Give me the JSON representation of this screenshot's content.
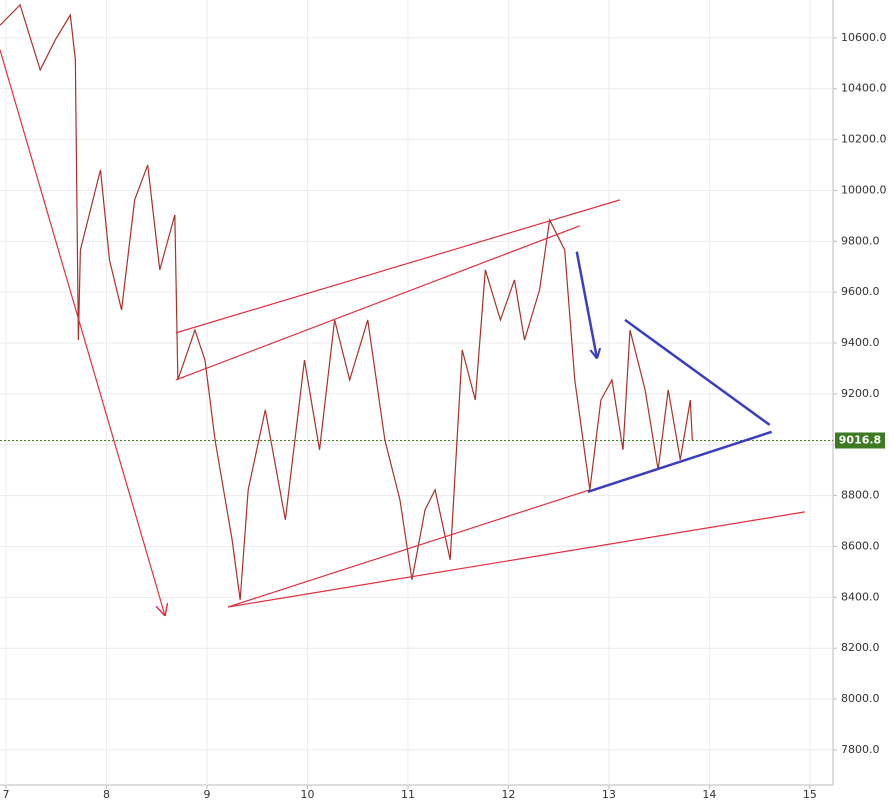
{
  "chart_data": {
    "type": "line",
    "x": [
      6.94,
      7.14,
      7.34,
      7.49,
      7.64,
      7.69,
      7.72,
      7.74,
      7.94,
      8.03,
      8.15,
      8.28,
      8.41,
      8.53,
      8.68,
      8.71,
      8.88,
      8.98,
      9.08,
      9.25,
      9.33,
      9.41,
      9.58,
      9.78,
      9.97,
      10.12,
      10.27,
      10.42,
      10.6,
      10.77,
      10.92,
      11.04,
      11.17,
      11.27,
      11.42,
      11.54,
      11.67,
      11.77,
      11.92,
      12.06,
      12.16,
      12.31,
      12.41,
      12.56,
      12.66,
      12.81,
      12.92,
      13.03,
      13.14,
      13.21,
      13.36,
      13.49,
      13.59,
      13.71,
      13.81,
      13.83
    ],
    "series": [
      {
        "color": "#a8322a",
        "values": [
          10650,
          10730,
          10474,
          10592,
          10690,
          10513,
          9412,
          9766,
          10081,
          9726,
          9530,
          9963,
          10100,
          9688,
          9904,
          9255,
          9451,
          9333,
          9019,
          8626,
          8390,
          8823,
          9137,
          8705,
          9333,
          8980,
          9491,
          9255,
          9491,
          9019,
          8784,
          8469,
          8744,
          8823,
          8548,
          9373,
          9176,
          9688,
          9491,
          9648,
          9412,
          9609,
          9884,
          9766,
          9255,
          8823,
          9176,
          9255,
          8980,
          9451,
          9216,
          8901,
          9216,
          8941,
          9176,
          9016.8
        ]
      }
    ],
    "last_price": 9016.8,
    "last_price_color": "#3d7a22",
    "xlim": [
      6.94,
      15.23
    ],
    "ylim": [
      7662,
      10749
    ],
    "xticks": [
      7,
      8,
      9,
      10,
      11,
      12,
      13,
      14,
      15
    ],
    "yticks": [
      {
        "value": 7800,
        "label": "7800.0"
      },
      {
        "value": 8000,
        "label": "8000.0"
      },
      {
        "value": 8200,
        "label": "8200.0"
      },
      {
        "value": 8400,
        "label": "8400.0"
      },
      {
        "value": 8600,
        "label": "8600.0"
      },
      {
        "value": 8800,
        "label": "8800.0"
      },
      {
        "value": 9000,
        "label": "9000.0"
      },
      {
        "value": 9200,
        "label": "9200.0"
      },
      {
        "value": 9400,
        "label": "9400.0"
      },
      {
        "value": 9600,
        "label": "9600.0"
      },
      {
        "value": 9800,
        "label": "9800.0"
      },
      {
        "value": 10000,
        "label": "10000.0"
      },
      {
        "value": 10200,
        "label": "10200.0"
      },
      {
        "value": 10400,
        "label": "10400.0"
      },
      {
        "value": 10600,
        "label": "10600.0"
      }
    ],
    "grid": true,
    "drawings": [
      {
        "color": "#e03040",
        "x": [
          6.94,
          8.58
        ],
        "y": [
          10553,
          8331
        ],
        "arrow": true
      },
      {
        "color": "#e03040",
        "x": [
          8.69,
          13.11
        ],
        "y": [
          9440,
          9963
        ]
      },
      {
        "color": "#e03040",
        "x": [
          8.69,
          12.71
        ],
        "y": [
          9255,
          9861
        ]
      },
      {
        "color": "#e03040",
        "x": [
          9.21,
          12.81
        ],
        "y": [
          8362,
          8823
        ]
      },
      {
        "color": "#e03040",
        "x": [
          9.21,
          14.95
        ],
        "y": [
          8362,
          8736
        ]
      },
      {
        "color": "#3a3fc0",
        "x": [
          13.16,
          14.6
        ],
        "y": [
          9491,
          9078
        ]
      },
      {
        "color": "#3a3fc0",
        "x": [
          12.79,
          14.62
        ],
        "y": [
          8815,
          9051
        ]
      },
      {
        "color": "#3a3fc0",
        "x": [
          12.68,
          12.88
        ],
        "y": [
          9759,
          9342
        ],
        "arrow": true
      }
    ]
  }
}
